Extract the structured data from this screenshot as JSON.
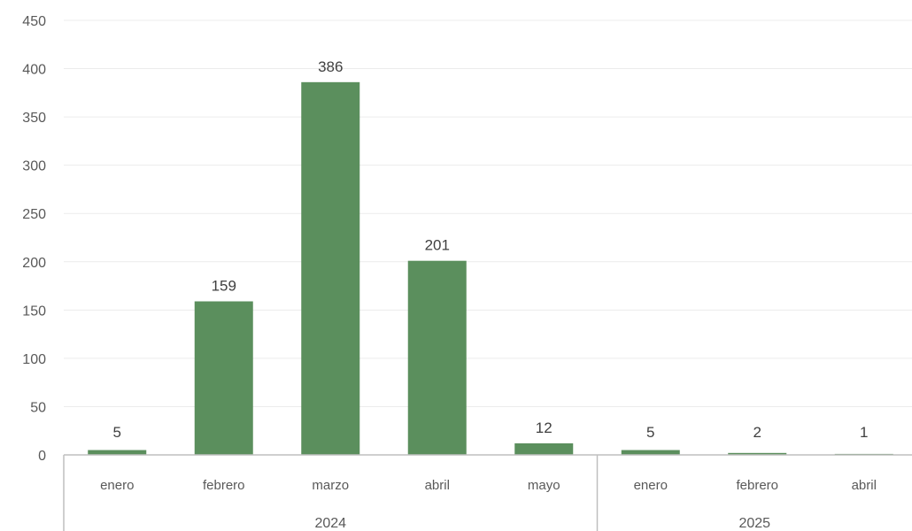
{
  "chart_data": {
    "type": "bar",
    "title": "",
    "xlabel": "",
    "ylabel": "",
    "ylim": [
      0,
      450
    ],
    "yticks": [
      0,
      50,
      100,
      150,
      200,
      250,
      300,
      350,
      400,
      450
    ],
    "ytick_labels": [
      "0",
      "50",
      "100",
      "150",
      "200",
      "250",
      "300",
      "350",
      "400",
      "450"
    ],
    "grid": true,
    "legend": "none",
    "bar_color": "#5b8f5d",
    "groups": [
      {
        "label": "2024",
        "categories": [
          "enero",
          "febrero",
          "marzo",
          "abril",
          "mayo"
        ],
        "values": [
          5,
          159,
          386,
          201,
          12
        ],
        "value_labels": [
          "5",
          "159",
          "386",
          "201",
          "12"
        ]
      },
      {
        "label": "2025",
        "categories": [
          "enero",
          "febrero",
          "abril"
        ],
        "values": [
          5,
          2,
          1
        ],
        "value_labels": [
          "5",
          "2",
          "1"
        ]
      }
    ]
  }
}
